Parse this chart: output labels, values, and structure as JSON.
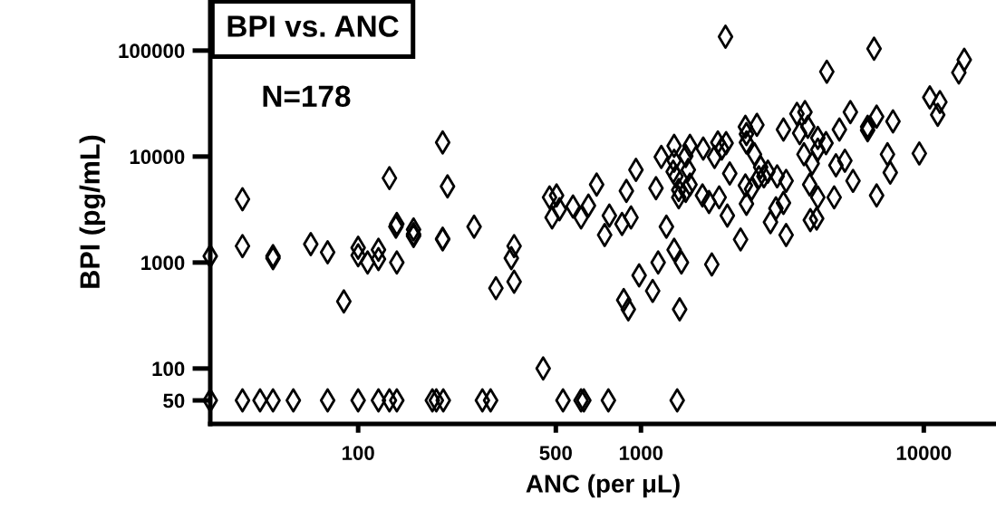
{
  "chart_data": {
    "type": "scatter",
    "title": "BPI vs. ANC",
    "xlabel": "ANC (per μL)",
    "ylabel": "BPI (pg/mL)",
    "annotations": [
      "N=178"
    ],
    "log": "xy",
    "xlim": [
      30,
      18000
    ],
    "ylim": [
      30,
      300000
    ],
    "xticks": [
      100,
      500,
      1000,
      10000
    ],
    "yticks": [
      50,
      100,
      1000,
      10000,
      100000
    ],
    "grid": false,
    "legend": false,
    "marker": "diamond",
    "series": [
      {
        "color": "#000000",
        "x": [
          30,
          39,
          45,
          50,
          59,
          78,
          100,
          118,
          129,
          137,
          183,
          189,
          200,
          275,
          294,
          530,
          614,
          628,
          767,
          1343,
          451,
          30,
          39,
          50,
          50,
          68,
          78,
          100,
          100,
          108,
          118,
          118,
          137,
          89,
          199,
          157,
          157,
          136,
          257,
          356,
          348,
          356,
          307,
          39,
          199,
          129,
          207,
          137,
          157,
          199,
          475,
          503,
          515,
          485,
          575,
          614,
          1990,
          6670,
          4540,
          13900,
          13300,
          10500,
          11400,
          11200,
          3560,
          3800,
          5500,
          6810,
          7780,
          6330,
          6330,
          5030,
          3190,
          3640,
          3890,
          2340,
          2570,
          2360,
          2360,
          4220,
          4510,
          4220,
          3770,
          4030,
          7440,
          9640,
          7610,
          6810,
          5260,
          4890,
          5620,
          4820,
          4220,
          3950,
          3260,
          3030,
          2810,
          2650,
          2720,
          2610,
          3190,
          3000,
          4180,
          3970,
          3260,
          2870,
          2520,
          2340,
          2460,
          2360,
          2020,
          2250,
          2060,
          2000,
          1870,
          1820,
          1930,
          1660,
          1490,
          1310,
          1440,
          1180,
          1310,
          1300,
          1470,
          1330,
          1490,
          1360,
          1360,
          1440,
          1650,
          1740,
          1890,
          1130,
          960,
          888,
          697,
          1230,
          922,
          857,
          773,
          744,
          652,
          1310,
          1150,
          1390,
          1780,
          985,
          1100,
          869,
          902,
          1370
        ],
        "values": [
          50,
          50,
          50,
          50,
          50,
          50,
          50,
          50,
          50,
          50,
          50,
          50,
          50,
          50,
          50,
          50,
          50,
          50,
          50,
          50,
          100,
          1150,
          1430,
          1150,
          1100,
          1490,
          1250,
          1380,
          1170,
          1000,
          1320,
          1080,
          1000,
          430,
          1680,
          1780,
          2050,
          2180,
          2180,
          1430,
          1100,
          660,
          573,
          3960,
          13600,
          6260,
          5230,
          2310,
          1850,
          1650,
          4120,
          4290,
          3180,
          2660,
          3380,
          2660,
          135000,
          104000,
          63200,
          81900,
          62000,
          36200,
          32700,
          24800,
          25300,
          26300,
          26300,
          23800,
          21500,
          19100,
          17700,
          18000,
          18000,
          16600,
          19100,
          19100,
          19900,
          16300,
          13600,
          15000,
          13400,
          11600,
          10500,
          8610,
          10500,
          10700,
          7050,
          4290,
          9140,
          8280,
          5900,
          4120,
          4120,
          5440,
          5900,
          6510,
          7190,
          7950,
          6510,
          6370,
          3650,
          3240,
          2600,
          2510,
          1820,
          2400,
          10500,
          5340,
          4930,
          3580,
          2770,
          1650,
          6920,
          13400,
          13600,
          9900,
          11900,
          11900,
          12600,
          12600,
          10100,
          9900,
          9140,
          7190,
          7490,
          6510,
          5440,
          4830,
          4120,
          4740,
          4290,
          3730,
          4120,
          5030,
          7490,
          4740,
          5440,
          2180,
          2660,
          2310,
          2770,
          1820,
          3440,
          1320,
          1000,
          1000,
          960,
          756,
          540,
          442,
          362,
          362
        ]
      }
    ]
  }
}
